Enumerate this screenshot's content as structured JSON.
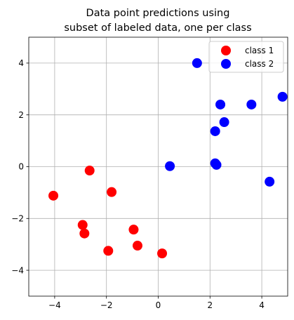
{
  "chart_data": {
    "type": "scatter",
    "title": [
      "Data point predictions using",
      "subset of labeled data, one per class"
    ],
    "xlabel": "",
    "ylabel": "",
    "xlim": [
      -5,
      5
    ],
    "ylim": [
      -5,
      5
    ],
    "xticks": [
      -4,
      -2,
      0,
      2,
      4
    ],
    "yticks": [
      -4,
      -2,
      0,
      2,
      4
    ],
    "grid": true,
    "legend_position": "top-right",
    "series": [
      {
        "name": "class 1",
        "color": "#ff0000",
        "points": [
          [
            -4.05,
            -1.12
          ],
          [
            -2.65,
            -0.15
          ],
          [
            -1.8,
            -0.98
          ],
          [
            -2.92,
            -2.25
          ],
          [
            -2.85,
            -2.58
          ],
          [
            -0.95,
            -2.43
          ],
          [
            -0.8,
            -3.05
          ],
          [
            -1.93,
            -3.25
          ],
          [
            0.15,
            -3.35
          ]
        ]
      },
      {
        "name": "class 2",
        "color": "#0000ff",
        "points": [
          [
            1.5,
            4.0
          ],
          [
            4.8,
            2.7
          ],
          [
            2.4,
            2.4
          ],
          [
            3.6,
            2.4
          ],
          [
            2.55,
            1.72
          ],
          [
            2.2,
            1.37
          ],
          [
            0.45,
            0.02
          ],
          [
            2.2,
            0.13
          ],
          [
            2.25,
            0.07
          ],
          [
            4.3,
            -0.58
          ]
        ]
      }
    ]
  }
}
